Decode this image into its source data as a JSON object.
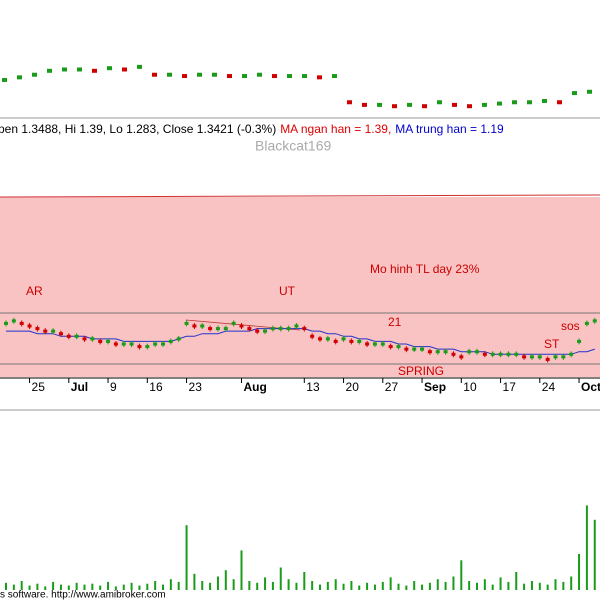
{
  "chart_data": [
    {
      "type": "candlestick",
      "ylim": [
        1.0,
        1.9
      ],
      "up_color": "#1a9c1a",
      "down_color": "#d00000",
      "values": [
        1.29,
        1.31,
        1.33,
        1.36,
        1.37,
        1.37,
        1.36,
        1.38,
        1.37,
        1.39,
        1.33,
        1.33,
        1.32,
        1.33,
        1.33,
        1.32,
        1.32,
        1.33,
        1.32,
        1.32,
        1.32,
        1.31,
        1.32,
        1.12,
        1.1,
        1.1,
        1.09,
        1.1,
        1.09,
        1.12,
        1.1,
        1.09,
        1.1,
        1.11,
        1.12,
        1.12,
        1.13,
        1.12,
        1.19,
        1.2
      ],
      "header": [
        "pen 1.3488, Hi 1.39, Lo 1.283, Close 1.3421 (-0.3%)",
        "MA ngan han = 1.39,",
        "MA trung han = 1.19"
      ],
      "header_colors": [
        "#000000",
        "#dd0000",
        "#0000cc"
      ]
    },
    {
      "type": "candlestick",
      "ylim": [
        1.11,
        1.81
      ],
      "up_color": "#1a9c1a",
      "down_color": "#d00000",
      "ma_color": "#2233cc",
      "categories": [
        null,
        null,
        null,
        "25",
        null,
        null,
        null,
        null,
        "Jul",
        null,
        null,
        null,
        null,
        "9",
        null,
        null,
        null,
        null,
        "16",
        null,
        null,
        null,
        null,
        "23",
        null,
        null,
        null,
        null,
        null,
        null,
        "Aug",
        null,
        null,
        null,
        null,
        null,
        null,
        null,
        "13",
        null,
        null,
        null,
        null,
        "20",
        null,
        null,
        null,
        null,
        "27",
        null,
        null,
        null,
        null,
        "Sep",
        null,
        null,
        null,
        null,
        "10",
        null,
        null,
        null,
        null,
        "17",
        null,
        null,
        null,
        null,
        "24",
        null,
        null,
        null,
        null,
        "Oct",
        null,
        null
      ],
      "values": [
        1.33,
        1.34,
        1.33,
        1.32,
        1.31,
        1.3,
        1.3,
        1.29,
        1.28,
        1.28,
        1.27,
        1.27,
        1.26,
        1.26,
        1.25,
        1.25,
        1.25,
        1.24,
        1.24,
        1.25,
        1.25,
        1.26,
        1.27,
        1.33,
        1.32,
        1.32,
        1.31,
        1.31,
        1.31,
        1.33,
        1.32,
        1.31,
        1.3,
        1.3,
        1.31,
        1.31,
        1.31,
        1.32,
        1.31,
        1.28,
        1.27,
        1.27,
        1.26,
        1.27,
        1.26,
        1.26,
        1.25,
        1.25,
        1.25,
        1.24,
        1.24,
        1.23,
        1.23,
        1.23,
        1.22,
        1.22,
        1.22,
        1.21,
        1.2,
        1.22,
        1.22,
        1.21,
        1.21,
        1.21,
        1.21,
        1.21,
        1.2,
        1.2,
        1.2,
        1.19,
        1.2,
        1.2,
        1.21,
        1.26,
        1.33,
        1.34
      ],
      "ma": [
        1.3,
        1.3,
        1.3,
        1.3,
        1.29,
        1.29,
        1.29,
        1.28,
        1.28,
        1.28,
        1.28,
        1.27,
        1.27,
        1.27,
        1.27,
        1.26,
        1.26,
        1.26,
        1.26,
        1.26,
        1.26,
        1.26,
        1.27,
        1.28,
        1.28,
        1.29,
        1.29,
        1.29,
        1.3,
        1.3,
        1.3,
        1.3,
        1.31,
        1.31,
        1.31,
        1.31,
        1.31,
        1.31,
        1.31,
        1.3,
        1.3,
        1.29,
        1.29,
        1.28,
        1.28,
        1.27,
        1.27,
        1.26,
        1.26,
        1.26,
        1.25,
        1.25,
        1.24,
        1.24,
        1.24,
        1.23,
        1.23,
        1.23,
        1.22,
        1.22,
        1.22,
        1.22,
        1.21,
        1.21,
        1.21,
        1.21,
        1.21,
        1.21,
        1.21,
        1.21,
        1.21,
        1.21,
        1.21,
        1.22,
        1.22,
        1.23
      ],
      "annotations": [
        "AR",
        "UT",
        "Mo hinh TL day 23%",
        "21",
        "sos",
        "ST",
        "SPRING"
      ],
      "watermark": "Blackcat169"
    },
    {
      "type": "bar",
      "ylim": [
        0,
        100
      ],
      "color": "#1a9c1a",
      "values": [
        8,
        6,
        10,
        5,
        7,
        4,
        9,
        6,
        5,
        8,
        6,
        7,
        5,
        9,
        4,
        6,
        8,
        5,
        7,
        10,
        6,
        12,
        9,
        72,
        18,
        10,
        8,
        15,
        22,
        12,
        44,
        10,
        8,
        14,
        9,
        25,
        12,
        8,
        20,
        10,
        6,
        9,
        12,
        7,
        10,
        5,
        8,
        6,
        9,
        14,
        7,
        5,
        10,
        6,
        8,
        12,
        9,
        15,
        33,
        10,
        8,
        12,
        6,
        14,
        9,
        20,
        7,
        10,
        8,
        6,
        12,
        9,
        15,
        40,
        94,
        78
      ],
      "footer": "s software. http://www.amibroker.com"
    }
  ]
}
